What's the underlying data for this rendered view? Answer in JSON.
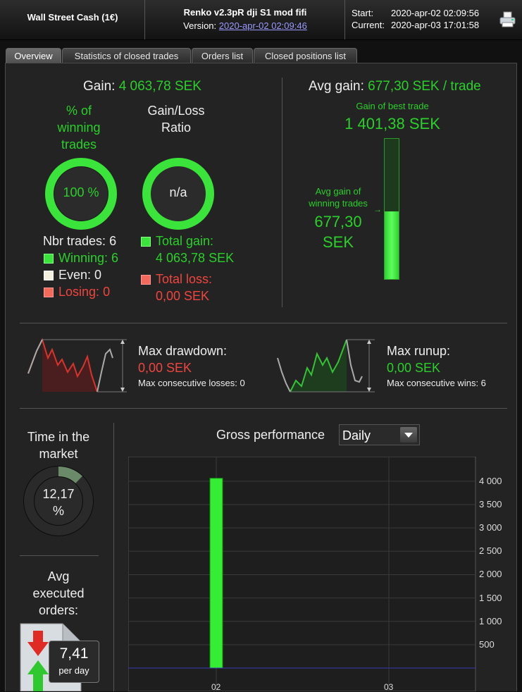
{
  "header": {
    "account": "Wall Street Cash (1€)",
    "strategy_name": "Renko v2.3pR dji S1 mod fifi",
    "version_label": "Version:",
    "version_value": "2020-apr-02 02:09:46",
    "start_label": "Start:",
    "start_value": "2020-apr-02 02:09:56",
    "current_label": "Current:",
    "current_value": "2020-apr-03 17:01:58",
    "print_icon": "printer-icon"
  },
  "tabs": [
    {
      "label": "Overview",
      "active": true
    },
    {
      "label": "Statistics of closed trades",
      "active": false
    },
    {
      "label": "Orders list",
      "active": false
    },
    {
      "label": "Closed positions list",
      "active": false
    }
  ],
  "overview": {
    "gain_label": "Gain:",
    "gain_value": "4 063,78 SEK",
    "pct_winning_label_1": "% of",
    "pct_winning_label_2": "winning",
    "pct_winning_label_3": "trades",
    "pct_winning_value": "100 %",
    "gl_ratio_label_1": "Gain/Loss",
    "gl_ratio_label_2": "Ratio",
    "gl_ratio_value": "n/a",
    "nbr_trades_label": "Nbr trades:",
    "nbr_trades_value": "6",
    "winning_label": "Winning:",
    "winning_value": "6",
    "even_label": "Even:",
    "even_value": "0",
    "losing_label": "Losing:",
    "losing_value": "0",
    "total_gain_label": "Total gain:",
    "total_gain_value": "4 063,78 SEK",
    "total_loss_label": "Total loss:",
    "total_loss_value": "0,00 SEK",
    "avg_gain_label": "Avg gain:",
    "avg_gain_value": "677,30 SEK / trade",
    "best_trade_label": "Gain of best trade",
    "best_trade_value": "1 401,38 SEK",
    "avg_win_label_1": "Avg gain of",
    "avg_win_label_2": "winning trades",
    "avg_win_value_1": "677,30",
    "avg_win_value_2": "SEK",
    "avg_win_fraction": 0.483,
    "max_drawdown_label": "Max drawdown:",
    "max_drawdown_value": "0,00 SEK",
    "max_consec_losses": "Max consecutive losses: 0",
    "max_runup_label": "Max runup:",
    "max_runup_value": "0,00 SEK",
    "max_consec_wins": "Max consecutive wins: 6",
    "time_market_label_1": "Time in the",
    "time_market_label_2": "market",
    "time_market_value_1": "12,17",
    "time_market_value_2": "%",
    "time_market_fraction": 0.1217,
    "avg_orders_label_1": "Avg",
    "avg_orders_label_2": "executed",
    "avg_orders_label_3": "orders:",
    "avg_orders_value": "7,41",
    "avg_orders_unit": "per day"
  },
  "performance": {
    "title": "Gross performance",
    "period_selected": "Daily"
  },
  "chart_data": {
    "type": "bar",
    "categories": [
      "02",
      "03"
    ],
    "values": [
      4063.78,
      0
    ],
    "ylim": [
      0,
      4300
    ],
    "yticks": [
      "4 000",
      "3 500",
      "3 000",
      "2 500",
      "2 000",
      "1 500",
      "1 000",
      "500"
    ],
    "ytick_values": [
      4000,
      3500,
      3000,
      2500,
      2000,
      1500,
      1000,
      500
    ],
    "grid": true,
    "bar_color": "#33ee33"
  },
  "colors": {
    "green": "#2ad02a",
    "red": "#f0453f",
    "background": "#232323"
  }
}
